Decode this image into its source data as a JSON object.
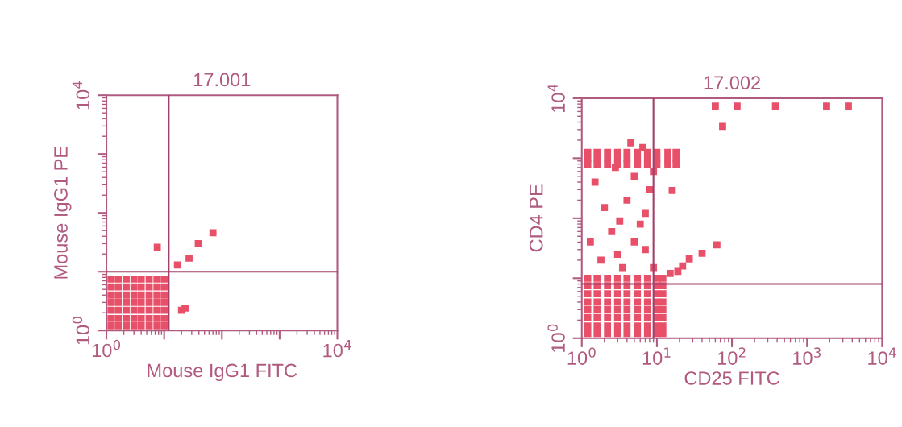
{
  "chart_data": [
    {
      "type": "scatter",
      "title": "17.001",
      "xlabel": "Mouse IgG1 FITC",
      "ylabel": "Mouse IgG1 PE",
      "log": "xy",
      "marker": "square",
      "xlim": [
        1,
        10000
      ],
      "ylim": [
        1,
        10000
      ],
      "xticks": [
        {
          "value": 1,
          "label": "10$^{0}$"
        },
        {
          "value": 10,
          "label": null
        },
        {
          "value": 100,
          "label": null
        },
        {
          "value": 1000,
          "label": null
        },
        {
          "value": 10000,
          "label": "10$^{4}$"
        }
      ],
      "yticks": [
        {
          "value": 1,
          "label": "10$^{0}$"
        },
        {
          "value": 10,
          "label": null
        },
        {
          "value": 100,
          "label": null
        },
        {
          "value": 1000,
          "label": null
        },
        {
          "value": 10000,
          "label": "10$^{4}$"
        }
      ],
      "ref_lines": [
        {
          "axis": "x",
          "value": 12,
          "color": "#a0406a"
        },
        {
          "axis": "y",
          "value": 10,
          "color": "#a0406a"
        }
      ],
      "series": [
        {
          "color": "#e8506a",
          "x": [
            1.2,
            1.6,
            2.2,
            3,
            4,
            5.5,
            7.5,
            10,
            1.2,
            1.6,
            2.2,
            3,
            4,
            5.5,
            7.5,
            10,
            1.2,
            1.6,
            2.2,
            3,
            4,
            5.5,
            7.5,
            10,
            1.2,
            1.6,
            2.2,
            3,
            4,
            5.5,
            7.5,
            10,
            1.2,
            1.6,
            2.2,
            3,
            4,
            5.5,
            7.5,
            10,
            1.2,
            1.6,
            2.2,
            3,
            4,
            5.5,
            7.5,
            10,
            1.2,
            1.6,
            2.2,
            3,
            4,
            5.5,
            7.5,
            10,
            7.6,
            17,
            27,
            39,
            70,
            23,
            20
          ],
          "values": [
            1.2,
            1.2,
            1.2,
            1.2,
            1.2,
            1.2,
            1.2,
            1.2,
            1.6,
            1.6,
            1.6,
            1.6,
            1.6,
            1.6,
            1.6,
            1.6,
            2.2,
            2.2,
            2.2,
            2.2,
            2.2,
            2.2,
            2.2,
            2.2,
            3,
            3,
            3,
            3,
            3,
            3,
            3,
            3,
            4,
            4,
            4,
            4,
            4,
            4,
            4,
            4,
            5.5,
            5.5,
            5.5,
            5.5,
            5.5,
            5.5,
            5.5,
            5.5,
            7.5,
            7.5,
            7.5,
            7.5,
            7.5,
            7.5,
            7.5,
            7.5,
            26,
            13,
            17,
            30,
            46,
            2.4,
            2.2
          ]
        }
      ]
    },
    {
      "type": "scatter",
      "title": "17.002",
      "xlabel": "CD25 FITC",
      "ylabel": "CD4 PE",
      "log": "xy",
      "marker": "square",
      "xlim": [
        1,
        10000
      ],
      "ylim": [
        1,
        10000
      ],
      "xticks": [
        {
          "value": 1,
          "label": "10$^{0}$"
        },
        {
          "value": 10,
          "label": "10$^{1}$"
        },
        {
          "value": 100,
          "label": "10$^{2}$"
        },
        {
          "value": 1000,
          "label": "10$^{3}$"
        },
        {
          "value": 10000,
          "label": "10$^{4}$"
        }
      ],
      "yticks": [
        {
          "value": 1,
          "label": "10$^{0}$"
        },
        {
          "value": 10,
          "label": null
        },
        {
          "value": 100,
          "label": null
        },
        {
          "value": 1000,
          "label": null
        },
        {
          "value": 10000,
          "label": "10$^{4}$"
        }
      ],
      "ref_lines": [
        {
          "axis": "x",
          "value": 9,
          "color": "#a0406a"
        },
        {
          "axis": "y",
          "value": 8,
          "color": "#a0406a"
        }
      ],
      "series": [
        {
          "color": "#e8506a",
          "x": [
            1.2,
            1.6,
            2.2,
            3,
            4,
            5.5,
            7.5,
            10,
            12,
            1.2,
            1.6,
            2.2,
            3,
            4,
            5.5,
            7.5,
            10,
            12,
            1.2,
            1.6,
            2.2,
            3,
            4,
            5.5,
            7.5,
            10,
            12,
            1.2,
            1.6,
            2.2,
            3,
            4,
            5.5,
            7.5,
            10,
            12,
            1.2,
            1.6,
            2.2,
            3,
            4,
            5.5,
            7.5,
            10,
            12,
            1.2,
            1.6,
            2.2,
            3,
            4,
            5.5,
            7.5,
            10,
            12,
            1.2,
            1.6,
            2.2,
            3,
            4,
            5.5,
            7.5,
            10,
            12,
            1.2,
            1.6,
            2.2,
            3,
            4,
            5.5,
            7.5,
            10,
            12,
            1.2,
            1.6,
            2.2,
            3,
            4,
            5.5,
            7.5,
            10,
            14,
            18,
            1.2,
            1.6,
            2.2,
            3,
            4,
            5.5,
            7.5,
            10,
            14,
            18,
            1.2,
            1.6,
            2.2,
            3,
            4,
            5.5,
            7.5,
            10,
            14,
            18,
            1.5,
            2,
            2.5,
            3,
            4,
            5,
            6,
            7,
            3.5,
            1.3,
            8,
            2.8,
            6.5,
            4.5,
            9,
            5,
            1.8,
            7,
            3.2,
            9,
            60,
            117,
            380,
            1820,
            3550,
            75,
            27,
            40,
            63,
            19,
            16,
            15,
            22
          ],
          "values": [
            1.2,
            1.2,
            1.2,
            1.2,
            1.2,
            1.2,
            1.2,
            1.2,
            1.2,
            1.6,
            1.6,
            1.6,
            1.6,
            1.6,
            1.6,
            1.6,
            1.6,
            1.6,
            2.2,
            2.2,
            2.2,
            2.2,
            2.2,
            2.2,
            2.2,
            2.2,
            2.2,
            3,
            3,
            3,
            3,
            3,
            3,
            3,
            3,
            3,
            4,
            4,
            4,
            4,
            4,
            4,
            4,
            4,
            4,
            5.5,
            5.5,
            5.5,
            5.5,
            5.5,
            5.5,
            5.5,
            5.5,
            5.5,
            7.5,
            7.5,
            7.5,
            7.5,
            7.5,
            7.5,
            7.5,
            7.5,
            7.5,
            10,
            10,
            10,
            10,
            10,
            10,
            10,
            10,
            10,
            800,
            800,
            800,
            800,
            800,
            800,
            800,
            800,
            800,
            800,
            1000,
            1000,
            1000,
            1000,
            1000,
            1000,
            1000,
            1000,
            1000,
            1000,
            1250,
            1250,
            1250,
            1250,
            1250,
            1250,
            1250,
            1250,
            1250,
            1250,
            400,
            150,
            60,
            25,
            200,
            500,
            80,
            30,
            15,
            40,
            300,
            700,
            1500,
            1800,
            15,
            40,
            20,
            120,
            90,
            600,
            7400,
            7400,
            7400,
            7400,
            7400,
            3400,
            21,
            26,
            36,
            13,
            290,
            12,
            16
          ]
        }
      ]
    }
  ]
}
